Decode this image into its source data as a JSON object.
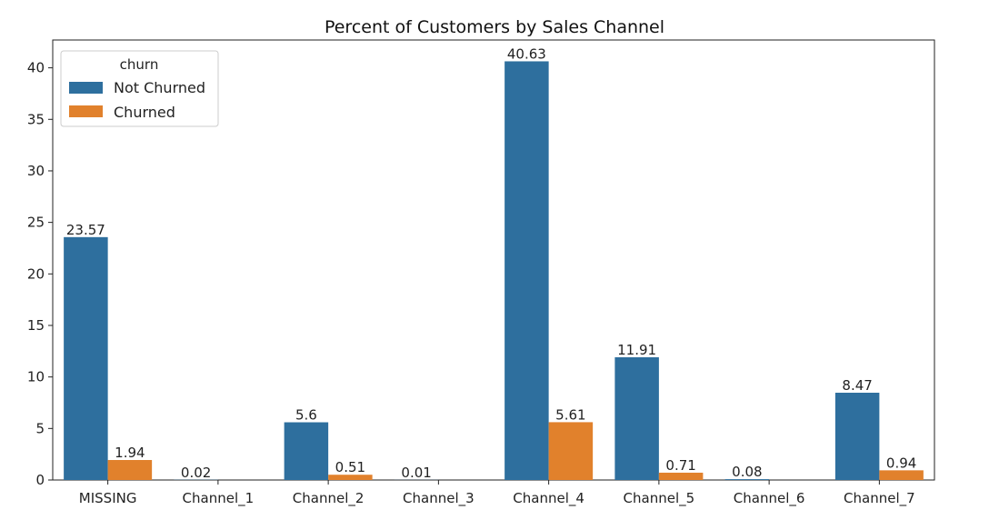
{
  "chart_data": {
    "type": "bar",
    "title": "Percent of Customers by Sales Channel",
    "xlabel": "",
    "ylabel": "",
    "categories": [
      "MISSING",
      "Channel_1",
      "Channel_2",
      "Channel_3",
      "Channel_4",
      "Channel_5",
      "Channel_6",
      "Channel_7"
    ],
    "series": [
      {
        "name": "Not Churned",
        "color": "#2e6f9e",
        "values": [
          23.57,
          0.02,
          5.6,
          0.01,
          40.63,
          11.91,
          0.08,
          8.47
        ],
        "labels": [
          "23.57",
          "0.02",
          "5.6",
          "0.01",
          "40.63",
          "11.91",
          "0.08",
          "8.47"
        ]
      },
      {
        "name": "Churned",
        "color": "#e1812c",
        "values": [
          1.94,
          null,
          0.51,
          null,
          5.61,
          0.71,
          null,
          0.94
        ],
        "labels": [
          "1.94",
          "",
          "0.51",
          "",
          "5.61",
          "0.71",
          "",
          "0.94"
        ]
      }
    ],
    "ylim": [
      0,
      42.7
    ],
    "yticks": [
      0,
      5,
      10,
      15,
      20,
      25,
      30,
      35,
      40
    ],
    "ytick_labels": [
      "0",
      "5",
      "10",
      "15",
      "20",
      "25",
      "30",
      "35",
      "40"
    ],
    "grid": false,
    "legend": {
      "title": "churn",
      "placement": "top-left"
    }
  }
}
